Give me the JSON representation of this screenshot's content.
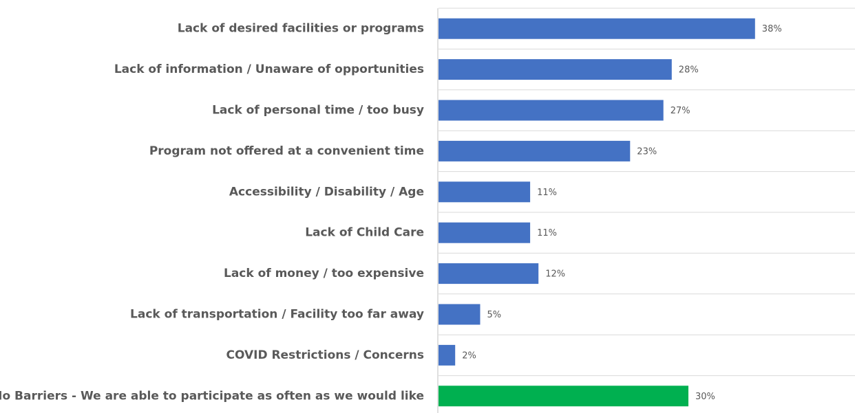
{
  "chart_data": {
    "type": "barh",
    "categories": [
      "Lack of desired facilities or programs",
      "Lack of information / Unaware of opportunities",
      "Lack of personal time / too busy",
      "Program not offered at a convenient time",
      "Accessibility / Disability / Age",
      "Lack of Child Care",
      "Lack of money / too expensive",
      "Lack of transportation / Facility too far away",
      "COVID Restrictions / Concerns",
      "No Barriers - We are able to participate as often as we would like"
    ],
    "values": [
      38,
      28,
      27,
      23,
      11,
      11,
      12,
      5,
      2,
      30
    ],
    "value_labels": [
      "38%",
      "28%",
      "27%",
      "23%",
      "11%",
      "11%",
      "12%",
      "5%",
      "2%",
      "30%"
    ],
    "colors": [
      "#4472c4",
      "#4472c4",
      "#4472c4",
      "#4472c4",
      "#4472c4",
      "#4472c4",
      "#4472c4",
      "#4472c4",
      "#4472c4",
      "#00b050"
    ],
    "xlim": [
      0,
      50
    ]
  }
}
